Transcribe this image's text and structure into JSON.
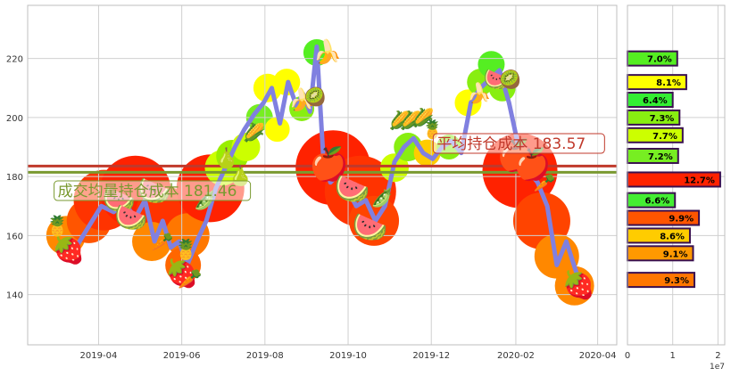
{
  "chart_data": {
    "type": "line",
    "main": {
      "x_ticks": [
        "2019-04",
        "2019-06",
        "2019-08",
        "2019-10",
        "2019-12",
        "2020-02",
        "2020-04"
      ],
      "y_ticks": [
        140,
        160,
        180,
        200,
        220
      ],
      "ylim": [
        123,
        238
      ],
      "xlim": [
        "2019-02-08",
        "2020-04-15"
      ],
      "grid": true,
      "series": [
        {
          "color": "#8080e0",
          "x": [
            "2019-03-02",
            "2019-03-10",
            "2019-03-18",
            "2019-03-26",
            "2019-04-03",
            "2019-04-12",
            "2019-04-20",
            "2019-04-28",
            "2019-05-05",
            "2019-05-12",
            "2019-05-18",
            "2019-05-24",
            "2019-05-30",
            "2019-06-05",
            "2019-06-12",
            "2019-06-19",
            "2019-06-26",
            "2019-07-03",
            "2019-07-10",
            "2019-07-17",
            "2019-07-24",
            "2019-07-31",
            "2019-08-06",
            "2019-08-12",
            "2019-08-18",
            "2019-08-24",
            "2019-08-29",
            "2019-09-03",
            "2019-09-08",
            "2019-09-13",
            "2019-09-18",
            "2019-09-24",
            "2019-09-30",
            "2019-10-07",
            "2019-10-14",
            "2019-10-21",
            "2019-10-28",
            "2019-11-04",
            "2019-11-11",
            "2019-11-18",
            "2019-11-25",
            "2019-12-02",
            "2019-12-09",
            "2019-12-16",
            "2019-12-23",
            "2019-12-30",
            "2020-01-06",
            "2020-01-13",
            "2020-01-20",
            "2020-01-27",
            "2020-02-03",
            "2020-02-10",
            "2020-02-17",
            "2020-02-24",
            "2020-03-02",
            "2020-03-09",
            "2020-03-16",
            "2020-03-23"
          ],
          "y": [
            156,
            152,
            158,
            164,
            170,
            168,
            171,
            166,
            172,
            158,
            165,
            156,
            158,
            150,
            158,
            165,
            176,
            183,
            190,
            196,
            201,
            205,
            210,
            198,
            212,
            204,
            208,
            202,
            224,
            185,
            178,
            181,
            176,
            170,
            172,
            165,
            170,
            185,
            190,
            193,
            188,
            186,
            190,
            192,
            188,
            205,
            210,
            213,
            216,
            205,
            190,
            182,
            178,
            170,
            150,
            158,
            148,
            140
          ]
        }
      ],
      "hlines": [
        {
          "y": 183.57,
          "color": "#c0392b"
        },
        {
          "y": 181.46,
          "color": "#7a9a30"
        }
      ],
      "annotations": [
        {
          "text_key": "left_label",
          "date": "2019-03-02",
          "y": 174,
          "color": "#7a9a30"
        },
        {
          "text_key": "right_label",
          "date": "2019-12-05",
          "y": 190,
          "color": "#c0392b"
        }
      ],
      "labels": {
        "left_label": "成交均量持仓成本 181.46",
        "right_label": "平均持仓成本 183.57"
      }
    },
    "side": {
      "x_ticks": [
        0,
        1,
        2
      ],
      "x_exponent": "1e7",
      "xlim": [
        0,
        2.15
      ],
      "ylim": [
        123,
        238
      ],
      "bars": [
        {
          "price": 220,
          "value": 1.1,
          "label": "7.0%",
          "color": "#55ee22"
        },
        {
          "price": 212,
          "value": 1.3,
          "label": "8.1%",
          "color": "#ffff00"
        },
        {
          "price": 206,
          "value": 1.0,
          "label": "6.4%",
          "color": "#33ee33"
        },
        {
          "price": 200,
          "value": 1.15,
          "label": "7.3%",
          "color": "#88ee11"
        },
        {
          "price": 194,
          "value": 1.22,
          "label": "7.7%",
          "color": "#ccff00"
        },
        {
          "price": 187,
          "value": 1.12,
          "label": "7.2%",
          "color": "#77ee22"
        },
        {
          "price": 179,
          "value": 2.05,
          "label": "12.7%",
          "color": "#ff2200"
        },
        {
          "price": 172,
          "value": 1.05,
          "label": "6.6%",
          "color": "#44ee33"
        },
        {
          "price": 166,
          "value": 1.58,
          "label": "9.9%",
          "color": "#ff5500"
        },
        {
          "price": 160,
          "value": 1.38,
          "label": "8.6%",
          "color": "#ffcc00"
        },
        {
          "price": 154,
          "value": 1.45,
          "label": "9.1%",
          "color": "#ff9900"
        },
        {
          "price": 145,
          "value": 1.48,
          "label": "9.3%",
          "color": "#ff7700"
        }
      ]
    },
    "blobs": [
      {
        "date": "2019-03-08",
        "y": 160,
        "r": 22,
        "color": "#ff8800"
      },
      {
        "date": "2019-03-25",
        "y": 165,
        "r": 25,
        "color": "#ff5500"
      },
      {
        "date": "2019-04-05",
        "y": 172,
        "r": 34,
        "color": "#ff3300"
      },
      {
        "date": "2019-04-28",
        "y": 175,
        "r": 40,
        "color": "#ff2200"
      },
      {
        "date": "2019-05-18",
        "y": 168,
        "r": 30,
        "color": "#ff3300"
      },
      {
        "date": "2019-05-10",
        "y": 158,
        "r": 22,
        "color": "#ff8800"
      },
      {
        "date": "2019-06-05",
        "y": 160,
        "r": 25,
        "color": "#ff7700"
      },
      {
        "date": "2019-06-02",
        "y": 150,
        "r": 20,
        "color": "#ff6600"
      },
      {
        "date": "2019-06-22",
        "y": 176,
        "r": 38,
        "color": "#ff2200"
      },
      {
        "date": "2019-07-01",
        "y": 183,
        "r": 20,
        "color": "#ccff00"
      },
      {
        "date": "2019-07-08",
        "y": 187,
        "r": 18,
        "color": "#99ee00"
      },
      {
        "date": "2019-07-18",
        "y": 190,
        "r": 16,
        "color": "#ccff00"
      },
      {
        "date": "2019-07-28",
        "y": 200,
        "r": 15,
        "color": "#77ee22"
      },
      {
        "date": "2019-08-03",
        "y": 210,
        "r": 16,
        "color": "#ffff00"
      },
      {
        "date": "2019-08-10",
        "y": 196,
        "r": 14,
        "color": "#ffff00"
      },
      {
        "date": "2019-08-17",
        "y": 212,
        "r": 15,
        "color": "#ffff00"
      },
      {
        "date": "2019-08-28",
        "y": 203,
        "r": 14,
        "color": "#88ee11"
      },
      {
        "date": "2019-09-08",
        "y": 222,
        "r": 15,
        "color": "#55ee22"
      },
      {
        "date": "2019-09-20",
        "y": 183,
        "r": 42,
        "color": "#ff2200"
      },
      {
        "date": "2019-10-10",
        "y": 175,
        "r": 40,
        "color": "#ff3300"
      },
      {
        "date": "2019-10-20",
        "y": 165,
        "r": 28,
        "color": "#ff4400"
      },
      {
        "date": "2019-11-04",
        "y": 183,
        "r": 16,
        "color": "#ccff00"
      },
      {
        "date": "2019-11-14",
        "y": 190,
        "r": 16,
        "color": "#88ee11"
      },
      {
        "date": "2019-11-28",
        "y": 188,
        "r": 15,
        "color": "#ffcc00"
      },
      {
        "date": "2019-12-14",
        "y": 190,
        "r": 14,
        "color": "#88ee11"
      },
      {
        "date": "2019-12-28",
        "y": 205,
        "r": 15,
        "color": "#ffff00"
      },
      {
        "date": "2020-01-06",
        "y": 212,
        "r": 15,
        "color": "#88ee11"
      },
      {
        "date": "2020-01-14",
        "y": 218,
        "r": 15,
        "color": "#55ee22"
      },
      {
        "date": "2020-01-22",
        "y": 210,
        "r": 15,
        "color": "#88ee11"
      },
      {
        "date": "2020-02-04",
        "y": 182,
        "r": 42,
        "color": "#ff2200"
      },
      {
        "date": "2020-02-20",
        "y": 165,
        "r": 32,
        "color": "#ff4400"
      },
      {
        "date": "2020-03-02",
        "y": 153,
        "r": 25,
        "color": "#ff8800"
      },
      {
        "date": "2020-03-15",
        "y": 143,
        "r": 22,
        "color": "#ff8800"
      }
    ],
    "icons": [
      {
        "date": "2019-03-10",
        "y": 155,
        "emoji": "🍓",
        "size": 30
      },
      {
        "date": "2019-03-02",
        "y": 163,
        "emoji": "🍍",
        "size": 22
      },
      {
        "date": "2019-04-16",
        "y": 172,
        "emoji": "🍉",
        "size": 30
      },
      {
        "date": "2019-04-25",
        "y": 166,
        "emoji": "🍉",
        "size": 30
      },
      {
        "date": "2019-05-12",
        "y": 175,
        "emoji": "🍉",
        "size": 30
      },
      {
        "date": "2019-05-18",
        "y": 158,
        "emoji": "🥕",
        "size": 20
      },
      {
        "date": "2019-06-01",
        "y": 147,
        "emoji": "🍓",
        "size": 30
      },
      {
        "date": "2019-06-04",
        "y": 155,
        "emoji": "🍍",
        "size": 22
      },
      {
        "date": "2019-06-07",
        "y": 145,
        "emoji": "🥕",
        "size": 22
      },
      {
        "date": "2019-06-18",
        "y": 172,
        "emoji": "🫛",
        "size": 20
      },
      {
        "date": "2019-07-04",
        "y": 186,
        "emoji": "🍐",
        "size": 22
      },
      {
        "date": "2019-07-14",
        "y": 180,
        "emoji": "🍐",
        "size": 22
      },
      {
        "date": "2019-07-24",
        "y": 195,
        "emoji": "🌽",
        "size": 20
      },
      {
        "date": "2019-08-28",
        "y": 206,
        "emoji": "🍌",
        "size": 24
      },
      {
        "date": "2019-09-07",
        "y": 207,
        "emoji": "🥝",
        "size": 20
      },
      {
        "date": "2019-09-16",
        "y": 222,
        "emoji": "🍌",
        "size": 26
      },
      {
        "date": "2019-09-17",
        "y": 184,
        "emoji": "🍎",
        "size": 36
      },
      {
        "date": "2019-10-04",
        "y": 176,
        "emoji": "🍉",
        "size": 32
      },
      {
        "date": "2019-10-17",
        "y": 163,
        "emoji": "🍉",
        "size": 32
      },
      {
        "date": "2019-10-26",
        "y": 173,
        "emoji": "🫛",
        "size": 20
      },
      {
        "date": "2019-11-08",
        "y": 199,
        "emoji": "🌽",
        "size": 20
      },
      {
        "date": "2019-11-16",
        "y": 199,
        "emoji": "🌽",
        "size": 20
      },
      {
        "date": "2019-11-25",
        "y": 200,
        "emoji": "🌽",
        "size": 20
      },
      {
        "date": "2019-12-02",
        "y": 196,
        "emoji": "🍍",
        "size": 20
      },
      {
        "date": "2020-01-05",
        "y": 208,
        "emoji": "🍌",
        "size": 22
      },
      {
        "date": "2020-01-18",
        "y": 213,
        "emoji": "🍉",
        "size": 24
      },
      {
        "date": "2020-01-28",
        "y": 213,
        "emoji": "🥝",
        "size": 20
      },
      {
        "date": "2020-02-01",
        "y": 187,
        "emoji": "🍎",
        "size": 34
      },
      {
        "date": "2020-02-13",
        "y": 184,
        "emoji": "🍎",
        "size": 34
      },
      {
        "date": "2020-02-22",
        "y": 178,
        "emoji": "🥕",
        "size": 20
      },
      {
        "date": "2020-03-18",
        "y": 143,
        "emoji": "🍓",
        "size": 30
      }
    ]
  }
}
